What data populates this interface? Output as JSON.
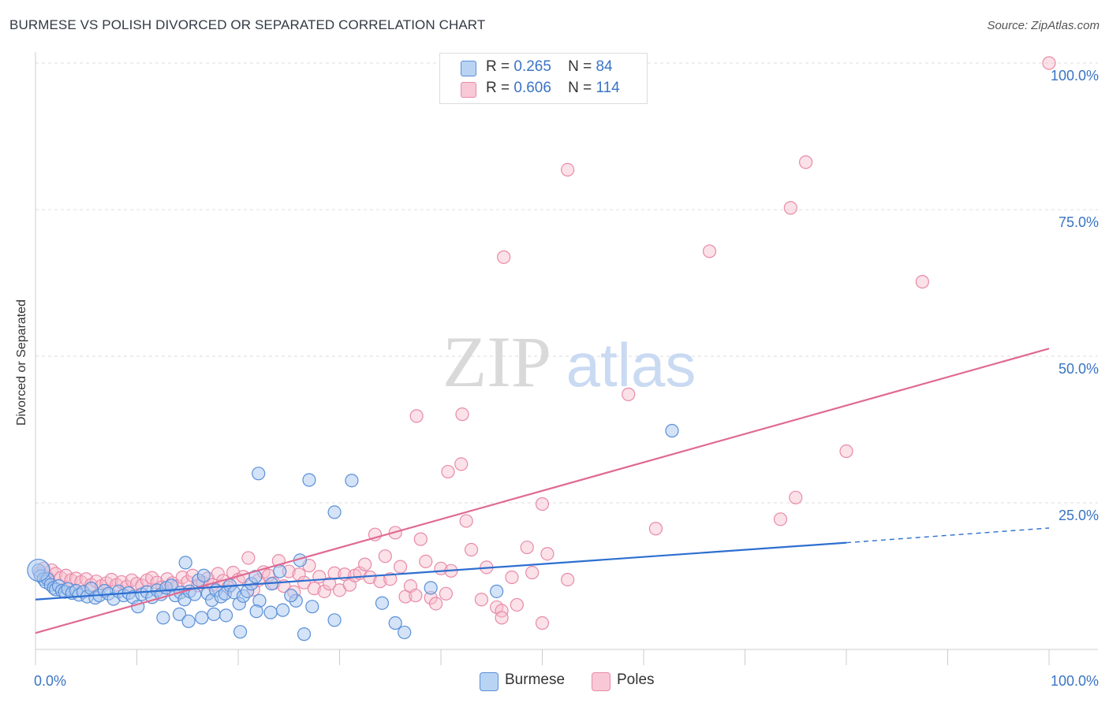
{
  "header": {
    "title": "BURMESE VS POLISH DIVORCED OR SEPARATED CORRELATION CHART",
    "source": "Source: ZipAtlas.com"
  },
  "legend": {
    "burmese": {
      "r_label": "R =",
      "r_value": "0.265",
      "n_label": "N =",
      "n_value": "84"
    },
    "poles": {
      "r_label": "R =",
      "r_value": "0.606",
      "n_label": "N =",
      "n_value": "114"
    }
  },
  "bottom_legend": {
    "burmese": "Burmese",
    "poles": "Poles"
  },
  "watermark": {
    "zip": "ZIP",
    "atlas": "atlas"
  },
  "colors": {
    "burmese_fill": "#a9c8f0",
    "burmese_stroke": "#5a8fd8",
    "burmese_line": "#2d6fd0",
    "poles_fill": "#f6bccd",
    "poles_stroke": "#e88aa8",
    "poles_line": "#e06a92",
    "axis_label": "#3a74c4",
    "grid": "#dddddd"
  },
  "chart_data": {
    "type": "scatter",
    "title": "BURMESE VS POLISH DIVORCED OR SEPARATED CORRELATION CHART",
    "xlabel": "",
    "ylabel": "Divorced or Separated",
    "xlim": [
      0,
      100
    ],
    "ylim": [
      0,
      100
    ],
    "x_tick_labels": [
      {
        "value": 0,
        "label": "0.0%"
      },
      {
        "value": 100,
        "label": "100.0%"
      }
    ],
    "y_tick_labels": [
      {
        "value": 25,
        "label": "25.0%"
      },
      {
        "value": 50,
        "label": "50.0%"
      },
      {
        "value": 75,
        "label": "75.0%"
      },
      {
        "value": 100,
        "label": "100.0%"
      }
    ],
    "grid": true,
    "legend_position": "top-center",
    "series": [
      {
        "name": "Burmese",
        "r": 0.265,
        "n": 84,
        "trend": {
          "x0": 0,
          "y0": 8.5,
          "x1": 80,
          "y1": 18.2,
          "dashed_to_x": 100,
          "dashed_to_y": 20.7
        },
        "points": [
          [
            0.3,
            13.5
          ],
          [
            0.5,
            12.5
          ],
          [
            0.8,
            12.0
          ],
          [
            1.0,
            11.5
          ],
          [
            1.2,
            12.0
          ],
          [
            1.5,
            11.0
          ],
          [
            1.8,
            10.5
          ],
          [
            2.0,
            10.2
          ],
          [
            2.3,
            10.8
          ],
          [
            2.6,
            10.0
          ],
          [
            2.9,
            9.8
          ],
          [
            3.2,
            10.3
          ],
          [
            3.6,
            9.6
          ],
          [
            4.0,
            10.0
          ],
          [
            4.3,
            9.3
          ],
          [
            4.7,
            9.8
          ],
          [
            5.1,
            9.0
          ],
          [
            5.5,
            10.4
          ],
          [
            5.9,
            8.8
          ],
          [
            6.3,
            9.2
          ],
          [
            6.8,
            10.0
          ],
          [
            7.2,
            9.5
          ],
          [
            7.7,
            8.6
          ],
          [
            8.2,
            9.9
          ],
          [
            8.7,
            9.2
          ],
          [
            9.2,
            9.6
          ],
          [
            9.6,
            8.9
          ],
          [
            10.1,
            7.3
          ],
          [
            10.5,
            9.4
          ],
          [
            11.0,
            9.8
          ],
          [
            11.5,
            8.9
          ],
          [
            12.0,
            10.1
          ],
          [
            12.4,
            9.4
          ],
          [
            12.9,
            10.5
          ],
          [
            13.4,
            10.9
          ],
          [
            13.8,
            9.2
          ],
          [
            14.3,
            9.7
          ],
          [
            14.7,
            8.5
          ],
          [
            15.2,
            9.9
          ],
          [
            15.7,
            9.4
          ],
          [
            16.1,
            11.8
          ],
          [
            16.6,
            12.6
          ],
          [
            17.0,
            9.5
          ],
          [
            17.4,
            8.4
          ],
          [
            17.8,
            10.1
          ],
          [
            18.3,
            9.0
          ],
          [
            18.7,
            9.5
          ],
          [
            19.2,
            10.9
          ],
          [
            19.6,
            9.7
          ],
          [
            20.1,
            7.8
          ],
          [
            20.5,
            9.1
          ],
          [
            20.9,
            9.9
          ],
          [
            21.3,
            11.2
          ],
          [
            21.7,
            12.4
          ],
          [
            22.1,
            8.3
          ],
          [
            12.6,
            5.4
          ],
          [
            14.2,
            6.0
          ],
          [
            15.1,
            4.8
          ],
          [
            16.4,
            5.4
          ],
          [
            17.6,
            6.0
          ],
          [
            18.8,
            5.8
          ],
          [
            20.2,
            3.0
          ],
          [
            21.8,
            6.5
          ],
          [
            23.2,
            6.3
          ],
          [
            24.4,
            6.7
          ],
          [
            25.7,
            8.3
          ],
          [
            27.3,
            7.3
          ],
          [
            26.5,
            2.6
          ],
          [
            29.5,
            5.0
          ],
          [
            34.2,
            7.9
          ],
          [
            39.0,
            10.5
          ],
          [
            45.5,
            9.9
          ],
          [
            22.0,
            30.0
          ],
          [
            27.0,
            28.9
          ],
          [
            31.2,
            28.8
          ],
          [
            29.5,
            23.4
          ],
          [
            23.3,
            11.2
          ],
          [
            24.1,
            13.3
          ],
          [
            26.1,
            15.2
          ],
          [
            14.8,
            14.8
          ],
          [
            25.2,
            9.2
          ],
          [
            35.5,
            4.5
          ],
          [
            36.4,
            2.9
          ],
          [
            62.8,
            37.3
          ]
        ],
        "large_point": [
          0.3,
          13.5
        ]
      },
      {
        "name": "Poles",
        "r": 0.606,
        "n": 114,
        "trend": {
          "x0": 0,
          "y0": 2.8,
          "x1": 100,
          "y1": 51.3
        },
        "points": [
          [
            0.4,
            13.0
          ],
          [
            0.8,
            13.8
          ],
          [
            1.2,
            12.3
          ],
          [
            1.6,
            13.5
          ],
          [
            2.0,
            12.9
          ],
          [
            2.5,
            12.2
          ],
          [
            3.0,
            12.6
          ],
          [
            3.5,
            11.8
          ],
          [
            4.0,
            12.1
          ],
          [
            4.5,
            11.5
          ],
          [
            5.0,
            12.0
          ],
          [
            5.5,
            11.0
          ],
          [
            6.0,
            11.6
          ],
          [
            6.5,
            10.8
          ],
          [
            7.0,
            11.3
          ],
          [
            7.5,
            11.9
          ],
          [
            8.0,
            11.0
          ],
          [
            8.5,
            11.5
          ],
          [
            9.0,
            10.7
          ],
          [
            9.5,
            11.8
          ],
          [
            10.0,
            11.2
          ],
          [
            10.5,
            10.9
          ],
          [
            11.0,
            11.8
          ],
          [
            11.5,
            12.2
          ],
          [
            12.0,
            11.4
          ],
          [
            12.5,
            10.6
          ],
          [
            13.0,
            12.0
          ],
          [
            13.5,
            11.3
          ],
          [
            14.0,
            10.8
          ],
          [
            14.5,
            12.3
          ],
          [
            15.0,
            11.5
          ],
          [
            15.5,
            12.6
          ],
          [
            16.0,
            10.9
          ],
          [
            16.5,
            11.4
          ],
          [
            17.0,
            12.1
          ],
          [
            17.5,
            11.0
          ],
          [
            18.0,
            12.9
          ],
          [
            18.5,
            11.7
          ],
          [
            19.0,
            10.6
          ],
          [
            19.5,
            13.1
          ],
          [
            20.0,
            11.9
          ],
          [
            20.5,
            12.4
          ],
          [
            21.0,
            15.6
          ],
          [
            21.5,
            10.2
          ],
          [
            22.0,
            11.8
          ],
          [
            22.5,
            13.2
          ],
          [
            23.0,
            12.6
          ],
          [
            23.5,
            11.3
          ],
          [
            24.0,
            15.1
          ],
          [
            24.5,
            10.8
          ],
          [
            25.0,
            13.3
          ],
          [
            25.5,
            9.8
          ],
          [
            26.0,
            12.8
          ],
          [
            26.5,
            11.4
          ],
          [
            27.0,
            14.3
          ],
          [
            27.5,
            10.4
          ],
          [
            28.0,
            12.4
          ],
          [
            28.5,
            9.9
          ],
          [
            29.0,
            11.2
          ],
          [
            29.5,
            13.0
          ],
          [
            30.0,
            10.1
          ],
          [
            30.5,
            12.8
          ],
          [
            31.0,
            11.0
          ],
          [
            31.5,
            12.6
          ],
          [
            32.0,
            13.0
          ],
          [
            32.5,
            14.5
          ],
          [
            33.0,
            12.3
          ],
          [
            33.5,
            19.6
          ],
          [
            34.0,
            11.6
          ],
          [
            34.5,
            15.9
          ],
          [
            35.0,
            12.0
          ],
          [
            35.5,
            19.9
          ],
          [
            36.0,
            14.1
          ],
          [
            36.5,
            9.0
          ],
          [
            37.0,
            10.8
          ],
          [
            37.5,
            9.2
          ],
          [
            38.0,
            18.8
          ],
          [
            38.5,
            15.0
          ],
          [
            39.0,
            8.8
          ],
          [
            39.5,
            7.8
          ],
          [
            40.0,
            13.8
          ],
          [
            40.5,
            9.5
          ],
          [
            41.0,
            13.4
          ],
          [
            42.0,
            31.6
          ],
          [
            42.5,
            21.9
          ],
          [
            43.0,
            17.0
          ],
          [
            44.0,
            8.5
          ],
          [
            44.5,
            14.0
          ],
          [
            45.5,
            7.2
          ],
          [
            46.0,
            6.6
          ],
          [
            47.0,
            12.3
          ],
          [
            47.5,
            7.6
          ],
          [
            48.5,
            17.4
          ],
          [
            49.0,
            13.1
          ],
          [
            50.0,
            24.8
          ],
          [
            50.5,
            16.3
          ],
          [
            50.0,
            4.5
          ],
          [
            52.5,
            11.9
          ],
          [
            37.6,
            39.8
          ],
          [
            42.1,
            40.1
          ],
          [
            40.7,
            30.3
          ],
          [
            46.2,
            66.9
          ],
          [
            52.5,
            81.8
          ],
          [
            58.5,
            43.5
          ],
          [
            61.2,
            20.6
          ],
          [
            66.5,
            67.9
          ],
          [
            73.5,
            22.2
          ],
          [
            74.5,
            75.3
          ],
          [
            75.0,
            25.9
          ],
          [
            76.0,
            83.1
          ],
          [
            80.0,
            33.8
          ],
          [
            87.5,
            62.7
          ],
          [
            100,
            100
          ],
          [
            46.0,
            5.4
          ]
        ]
      }
    ]
  }
}
